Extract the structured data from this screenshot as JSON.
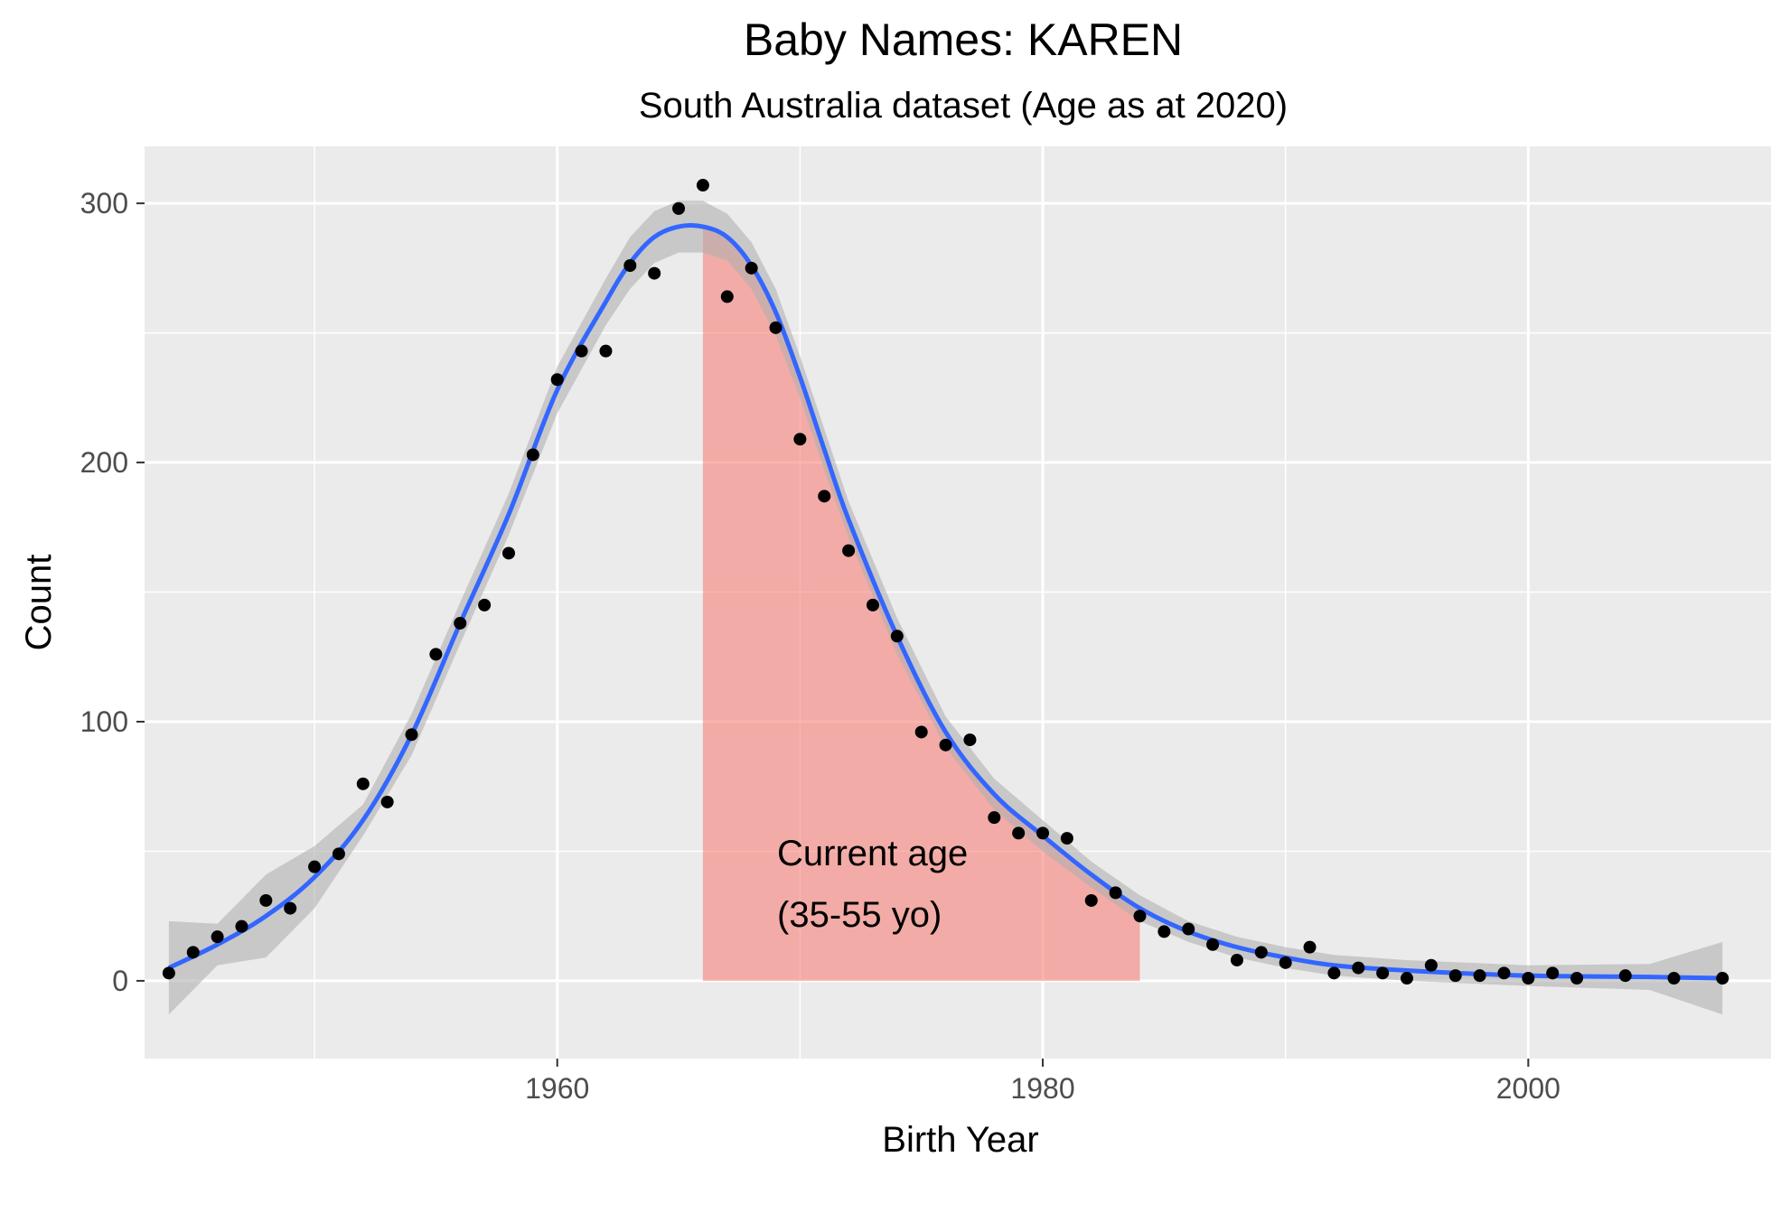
{
  "chart_data": {
    "type": "scatter",
    "title": "Baby Names: KAREN",
    "subtitle": "South Australia dataset (Age as at 2020)",
    "xlabel": "Birth Year",
    "ylabel": "Count",
    "xlim": [
      1943,
      2010
    ],
    "ylim": [
      -30,
      322
    ],
    "x_ticks": [
      1960,
      1980,
      2000
    ],
    "y_ticks": [
      0,
      100,
      200,
      300
    ],
    "x_tick_labels": [
      "1960",
      "1980",
      "2000"
    ],
    "y_tick_labels": [
      "0",
      "100",
      "200",
      "300"
    ],
    "grid": true,
    "background": "#ebebeb",
    "colors": {
      "points": "#000000",
      "smooth_line": "#3366ff",
      "confidence_band": "#b0b0b0",
      "highlight": "#f8766d"
    },
    "series": [
      {
        "type": "points",
        "x": [
          1944,
          1945,
          1946,
          1947,
          1948,
          1949,
          1950,
          1951,
          1952,
          1953,
          1954,
          1955,
          1956,
          1957,
          1958,
          1959,
          1960,
          1961,
          1962,
          1963,
          1964,
          1965,
          1966,
          1967,
          1968,
          1969,
          1970,
          1971,
          1972,
          1973,
          1974,
          1975,
          1976,
          1977,
          1978,
          1979,
          1980,
          1981,
          1982,
          1983,
          1984,
          1985,
          1986,
          1987,
          1988,
          1989,
          1990,
          1991,
          1992,
          1993,
          1994,
          1995,
          1996,
          1997,
          1998,
          1999,
          2000,
          2001,
          2002,
          2004,
          2006,
          2008
        ],
        "y": [
          3,
          11,
          17,
          21,
          31,
          28,
          44,
          49,
          76,
          69,
          95,
          126,
          138,
          145,
          165,
          203,
          232,
          243,
          243,
          276,
          273,
          298,
          307,
          264,
          275,
          252,
          209,
          187,
          166,
          145,
          133,
          96,
          91,
          93,
          63,
          57,
          57,
          55,
          31,
          34,
          25,
          19,
          20,
          14,
          8,
          11,
          7,
          13,
          3,
          5,
          3,
          1,
          6,
          2,
          2,
          3,
          1,
          3,
          1,
          2,
          1,
          1
        ]
      },
      {
        "type": "smooth",
        "x": [
          1944,
          1946,
          1948,
          1950,
          1952,
          1954,
          1956,
          1958,
          1960,
          1962,
          1963,
          1964,
          1965,
          1966,
          1967,
          1968,
          1969,
          1970,
          1971,
          1972,
          1974,
          1976,
          1978,
          1980,
          1982,
          1984,
          1986,
          1988,
          1990,
          1992,
          1995,
          2000,
          2005,
          2008
        ],
        "y": [
          5,
          14,
          25,
          40,
          62,
          95,
          138,
          180,
          228,
          262,
          277,
          287,
          291,
          291,
          287,
          276,
          258,
          233,
          205,
          178,
          133,
          96,
          72,
          56,
          41,
          28,
          19,
          13,
          9,
          6,
          4,
          2,
          1.5,
          1
        ],
        "band": [
          18,
          8,
          16,
          12,
          6,
          8,
          8,
          8,
          9,
          9,
          10,
          10,
          10,
          10,
          9,
          9,
          9,
          8,
          8,
          7,
          7,
          6,
          6,
          6,
          5,
          5,
          4,
          4,
          4,
          4,
          4,
          4,
          5,
          14
        ]
      }
    ],
    "highlight": {
      "x_range": [
        1966,
        1984
      ],
      "label_lines": [
        "Current age",
        "(35-55 yo)"
      ]
    }
  }
}
